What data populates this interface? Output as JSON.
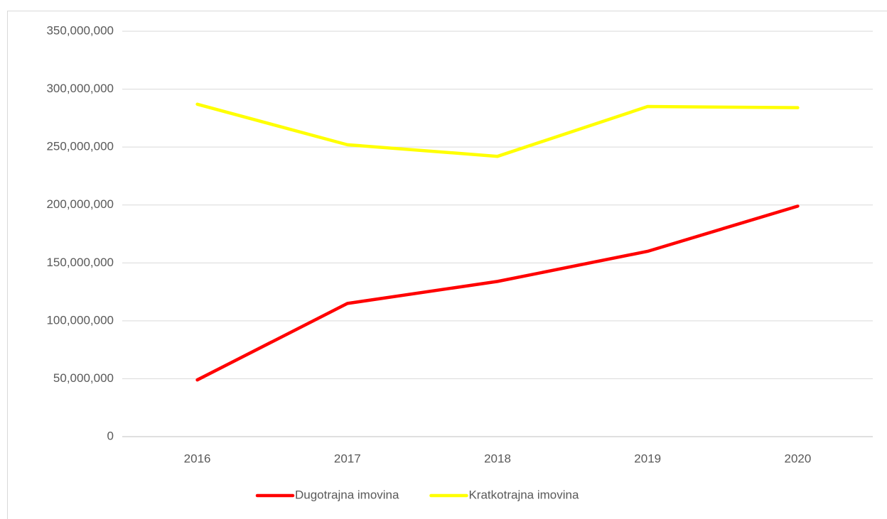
{
  "chart_data": {
    "type": "line",
    "categories": [
      "2016",
      "2017",
      "2018",
      "2019",
      "2020"
    ],
    "series": [
      {
        "name": "Dugotrajna imovina",
        "color": "#ff0000",
        "values": [
          49000000,
          115000000,
          134000000,
          160000000,
          199000000
        ]
      },
      {
        "name": "Kratkotrajna imovina",
        "color": "#ffff00",
        "values": [
          287000000,
          252000000,
          242000000,
          285000000,
          284000000
        ]
      }
    ],
    "ylim": [
      0,
      350000000
    ],
    "yticks": [
      0,
      {
        "value": 50000000,
        "label": "50,000,000"
      },
      {
        "value": 100000000,
        "label": "100,000,000"
      },
      {
        "value": 150000000,
        "label": "150,000,000"
      },
      {
        "value": 200000000,
        "label": "200,000,000"
      },
      {
        "value": 250000000,
        "label": "250,000,000"
      },
      {
        "value": 300000000,
        "label": "300,000,000"
      },
      {
        "value": 350000000,
        "label": "350,000,000"
      }
    ],
    "grid": true,
    "legend": "bottom"
  }
}
